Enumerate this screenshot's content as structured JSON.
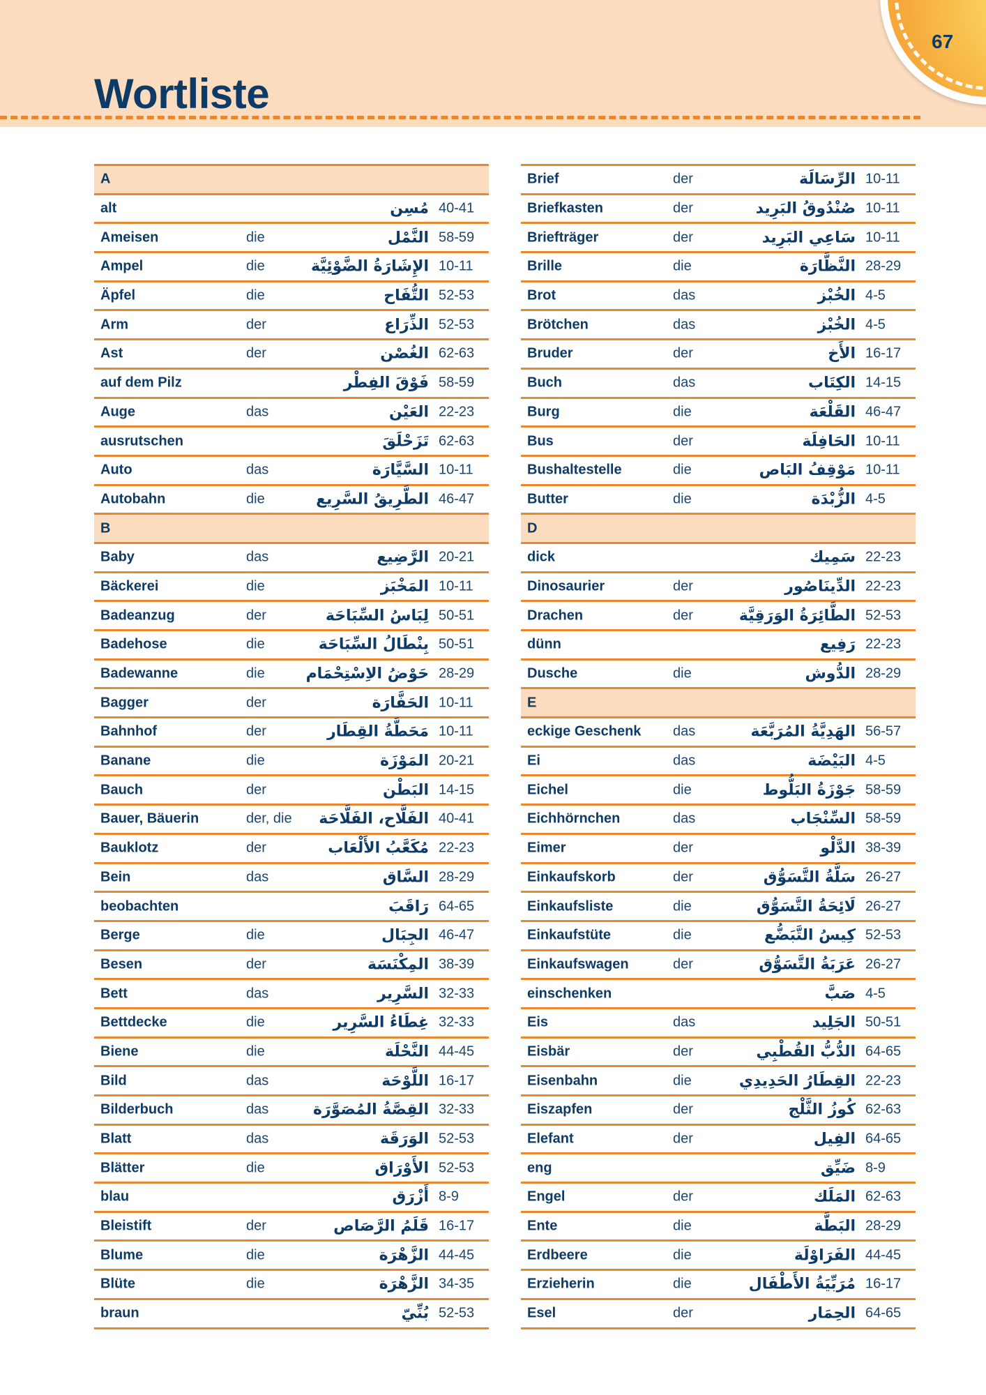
{
  "page": {
    "title": "Wortliste",
    "page_number": "67"
  },
  "colors": {
    "primary_text": "#0e3a66",
    "rule": "#e8872d",
    "header_fill": "#fcdcbf"
  },
  "columns": [
    {
      "sections": [
        {
          "letter": "A",
          "entries": [
            [
              "alt",
              "",
              "مُسِن",
              "40-41"
            ],
            [
              "Ameisen",
              "die",
              "النَّمْل",
              "58-59"
            ],
            [
              "Ampel",
              "die",
              "الإِشَارَةُ الضَّوْئِيَّة",
              "10-11"
            ],
            [
              "Äpfel",
              "die",
              "التُّفَاح",
              "52-53"
            ],
            [
              "Arm",
              "der",
              "الذِّرَاع",
              "52-53"
            ],
            [
              "Ast",
              "der",
              "الغُصْن",
              "62-63"
            ],
            [
              "auf dem Pilz",
              "",
              "فَوْقَ الفِطْر",
              "58-59"
            ],
            [
              "Auge",
              "das",
              "العَيْن",
              "22-23"
            ],
            [
              "ausrutschen",
              "",
              "تَزَحْلَقَ",
              "62-63"
            ],
            [
              "Auto",
              "das",
              "السَّيَّارَة",
              "10-11"
            ],
            [
              "Autobahn",
              "die",
              "الطَّرِيقُ السَّرِيع",
              "46-47"
            ]
          ]
        },
        {
          "letter": "B",
          "entries": [
            [
              "Baby",
              "das",
              "الرَّضِيع",
              "20-21"
            ],
            [
              "Bäckerei",
              "die",
              "المَخْبَز",
              "10-11"
            ],
            [
              "Badeanzug",
              "der",
              "لِبَاسُ السِّبَاحَة",
              "50-51"
            ],
            [
              "Badehose",
              "die",
              "بِنْطَالُ السِّبَاحَة",
              "50-51"
            ],
            [
              "Badewanne",
              "die",
              "حَوْضُ الاِسْتِحْمَام",
              "28-29"
            ],
            [
              "Bagger",
              "der",
              "الحَفَّارَة",
              "10-11"
            ],
            [
              "Bahnhof",
              "der",
              "مَحَطَّةُ القِطَار",
              "10-11"
            ],
            [
              "Banane",
              "die",
              "المَوْزَة",
              "20-21"
            ],
            [
              "Bauch",
              "der",
              "البَطْن",
              "14-15"
            ],
            [
              "Bauer, Bäuerin",
              "der, die",
              "الفَلَّاح، الفَلَّاحَة",
              "40-41"
            ],
            [
              "Bauklotz",
              "der",
              "مُكَعَّبُ الأَلْعَاب",
              "22-23"
            ],
            [
              "Bein",
              "das",
              "السَّاق",
              "28-29"
            ],
            [
              "beobachten",
              "",
              "رَاقَبَ",
              "64-65"
            ],
            [
              "Berge",
              "die",
              "الجِبَال",
              "46-47"
            ],
            [
              "Besen",
              "der",
              "المِكْنَسَة",
              "38-39"
            ],
            [
              "Bett",
              "das",
              "السَّرِير",
              "32-33"
            ],
            [
              "Bettdecke",
              "die",
              "غِطَاءُ السَّرِير",
              "32-33"
            ],
            [
              "Biene",
              "die",
              "النَّحْلَة",
              "44-45"
            ],
            [
              "Bild",
              "das",
              "اللَّوْحَة",
              "16-17"
            ],
            [
              "Bilderbuch",
              "das",
              "القِصَّةُ المُصَوَّرَة",
              "32-33"
            ],
            [
              "Blatt",
              "das",
              "الوَرَقَة",
              "52-53"
            ],
            [
              "Blätter",
              "die",
              "الأَوْرَاق",
              "52-53"
            ],
            [
              "blau",
              "",
              "أَزْرَق",
              "8-9"
            ],
            [
              "Bleistift",
              "der",
              "قَلَمُ الرَّصَاص",
              "16-17"
            ],
            [
              "Blume",
              "die",
              "الزَّهْرَة",
              "44-45"
            ],
            [
              "Blüte",
              "die",
              "الزَّهْرَة",
              "34-35"
            ],
            [
              "braun",
              "",
              "بُنِّيّ",
              "52-53"
            ]
          ]
        }
      ]
    },
    {
      "sections": [
        {
          "letter": "",
          "entries": [
            [
              "Brief",
              "der",
              "الرِّسَالَة",
              "10-11"
            ],
            [
              "Briefkasten",
              "der",
              "صُنْدُوقُ البَرِيد",
              "10-11"
            ],
            [
              "Briefträger",
              "der",
              "سَاعِي البَرِيد",
              "10-11"
            ],
            [
              "Brille",
              "die",
              "النَّظَّارَة",
              "28-29"
            ],
            [
              "Brot",
              "das",
              "الخُبْز",
              "4-5"
            ],
            [
              "Brötchen",
              "das",
              "الخُبْز",
              "4-5"
            ],
            [
              "Bruder",
              "der",
              "الأَخ",
              "16-17"
            ],
            [
              "Buch",
              "das",
              "الكِتَاب",
              "14-15"
            ],
            [
              "Burg",
              "die",
              "القَلْعَة",
              "46-47"
            ],
            [
              "Bus",
              "der",
              "الحَافِلَة",
              "10-11"
            ],
            [
              "Bushaltestelle",
              "die",
              "مَوْقِفُ البَاص",
              "10-11"
            ],
            [
              "Butter",
              "die",
              "الزُّبْدَة",
              "4-5"
            ]
          ]
        },
        {
          "letter": "D",
          "entries": [
            [
              "dick",
              "",
              "سَمِيك",
              "22-23"
            ],
            [
              "Dinosaurier",
              "der",
              "الدِّينَاصُور",
              "22-23"
            ],
            [
              "Drachen",
              "der",
              "الطَّائِرَةُ الوَرَقِيَّة",
              "52-53"
            ],
            [
              "dünn",
              "",
              "رَفِيع",
              "22-23"
            ],
            [
              "Dusche",
              "die",
              "الدُّوش",
              "28-29"
            ]
          ]
        },
        {
          "letter": "E",
          "entries": [
            [
              "eckige Geschenk",
              "das",
              "الهَدِيَّةُ المُرَبَّعَة",
              "56-57"
            ],
            [
              "Ei",
              "das",
              "البَيْضَة",
              "4-5"
            ],
            [
              "Eichel",
              "die",
              "جَوْزَةُ البَلُّوط",
              "58-59"
            ],
            [
              "Eichhörnchen",
              "das",
              "السِّنْجَاب",
              "58-59"
            ],
            [
              "Eimer",
              "der",
              "الدَّلْو",
              "38-39"
            ],
            [
              "Einkaufskorb",
              "der",
              "سَلَّةُ التَّسَوُّق",
              "26-27"
            ],
            [
              "Einkaufsliste",
              "die",
              "لَائِحَةُ التَّسَوُّق",
              "26-27"
            ],
            [
              "Einkaufstüte",
              "die",
              "كِيسُ التَّبَضُّع",
              "52-53"
            ],
            [
              "Einkaufswagen",
              "der",
              "عَرَبَةُ التَّسَوُّق",
              "26-27"
            ],
            [
              "einschenken",
              "",
              "صَبَّ",
              "4-5"
            ],
            [
              "Eis",
              "das",
              "الجَلِيد",
              "50-51"
            ],
            [
              "Eisbär",
              "der",
              "الدُّبُّ القُطْبِي",
              "64-65"
            ],
            [
              "Eisenbahn",
              "die",
              "القِطَارُ الحَدِيدِي",
              "22-23"
            ],
            [
              "Eiszapfen",
              "der",
              "كُوزُ الثَّلْج",
              "62-63"
            ],
            [
              "Elefant",
              "der",
              "الفِيل",
              "64-65"
            ],
            [
              "eng",
              "",
              "ضَيِّق",
              "8-9"
            ],
            [
              "Engel",
              "der",
              "المَلَك",
              "62-63"
            ],
            [
              "Ente",
              "die",
              "البَطَّة",
              "28-29"
            ],
            [
              "Erdbeere",
              "die",
              "الفَرَاوْلَة",
              "44-45"
            ],
            [
              "Erzieherin",
              "die",
              "مُرَبِّيَةُ الأَطْفَال",
              "16-17"
            ],
            [
              "Esel",
              "der",
              "الحِمَار",
              "64-65"
            ]
          ]
        }
      ]
    }
  ]
}
